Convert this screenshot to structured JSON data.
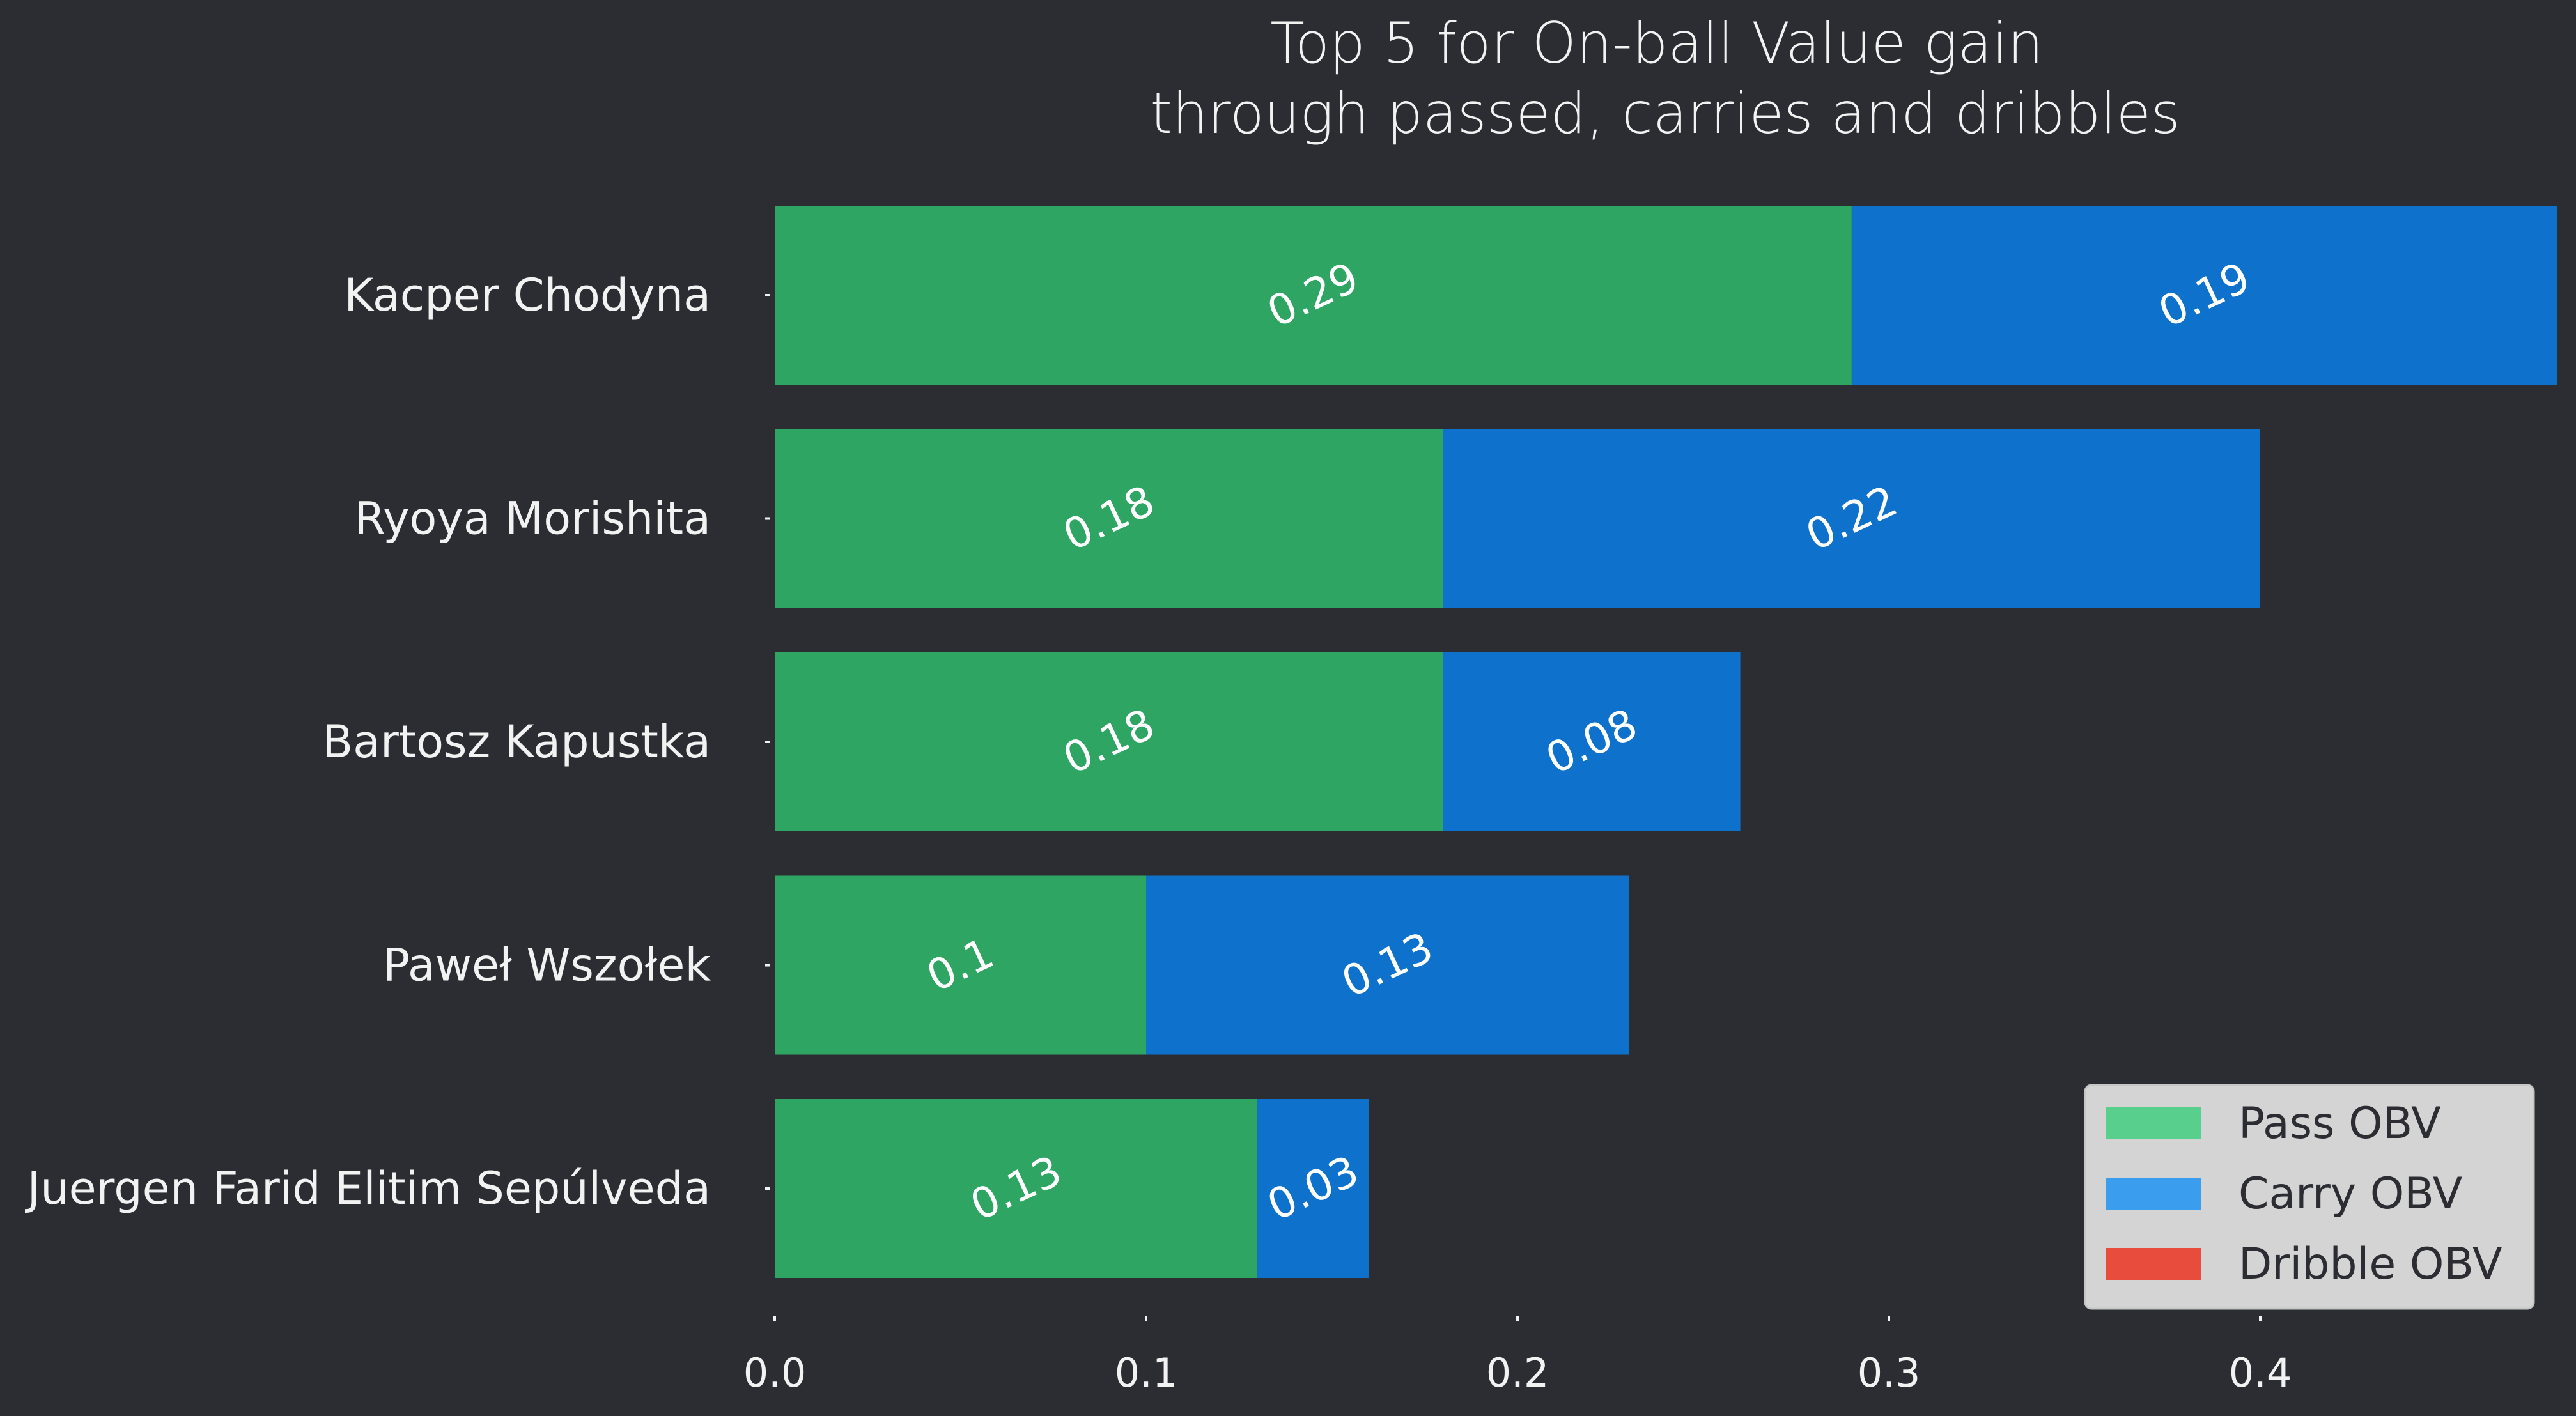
{
  "chart_data": {
    "type": "bar",
    "orientation": "horizontal",
    "stacked": true,
    "title": "Top 5 for On-ball Value gain",
    "subtitle": "through passed, carries and dribbles",
    "categories": [
      "Kacper Chodyna",
      "Ryoya Morishita",
      "Bartosz Kapustka",
      "Paweł Wszołek",
      "Juergen Farid Elitim Sepúlveda"
    ],
    "series": [
      {
        "name": "Pass OBV",
        "color": "#2ea562",
        "legend_color": "#58cf8c",
        "values": [
          0.29,
          0.18,
          0.18,
          0.1,
          0.13
        ],
        "labels": [
          "0.29",
          "0.18",
          "0.18",
          "0.1",
          "0.13"
        ]
      },
      {
        "name": "Carry OBV",
        "color": "#0e72cc",
        "legend_color": "#3b9ded",
        "values": [
          0.19,
          0.22,
          0.08,
          0.13,
          0.03
        ],
        "labels": [
          "0.19",
          "0.22",
          "0.08",
          "0.13",
          "0.03"
        ]
      },
      {
        "name": "Dribble OBV",
        "color": "#e74c3c",
        "legend_color": "#e74c3c",
        "values": [
          0,
          0,
          0,
          0,
          0
        ],
        "labels": []
      }
    ],
    "xticks": [
      "0.0",
      "0.1",
      "0.2",
      "0.3",
      "0.4"
    ],
    "xlim": [
      0,
      0.48
    ],
    "grid": false,
    "legend_position": "bottom-right",
    "label_rotation_deg": 25
  },
  "colors": {
    "background": "#2c2d33",
    "text": "#f2f2f2",
    "legend_background": "#d4d4d4"
  }
}
